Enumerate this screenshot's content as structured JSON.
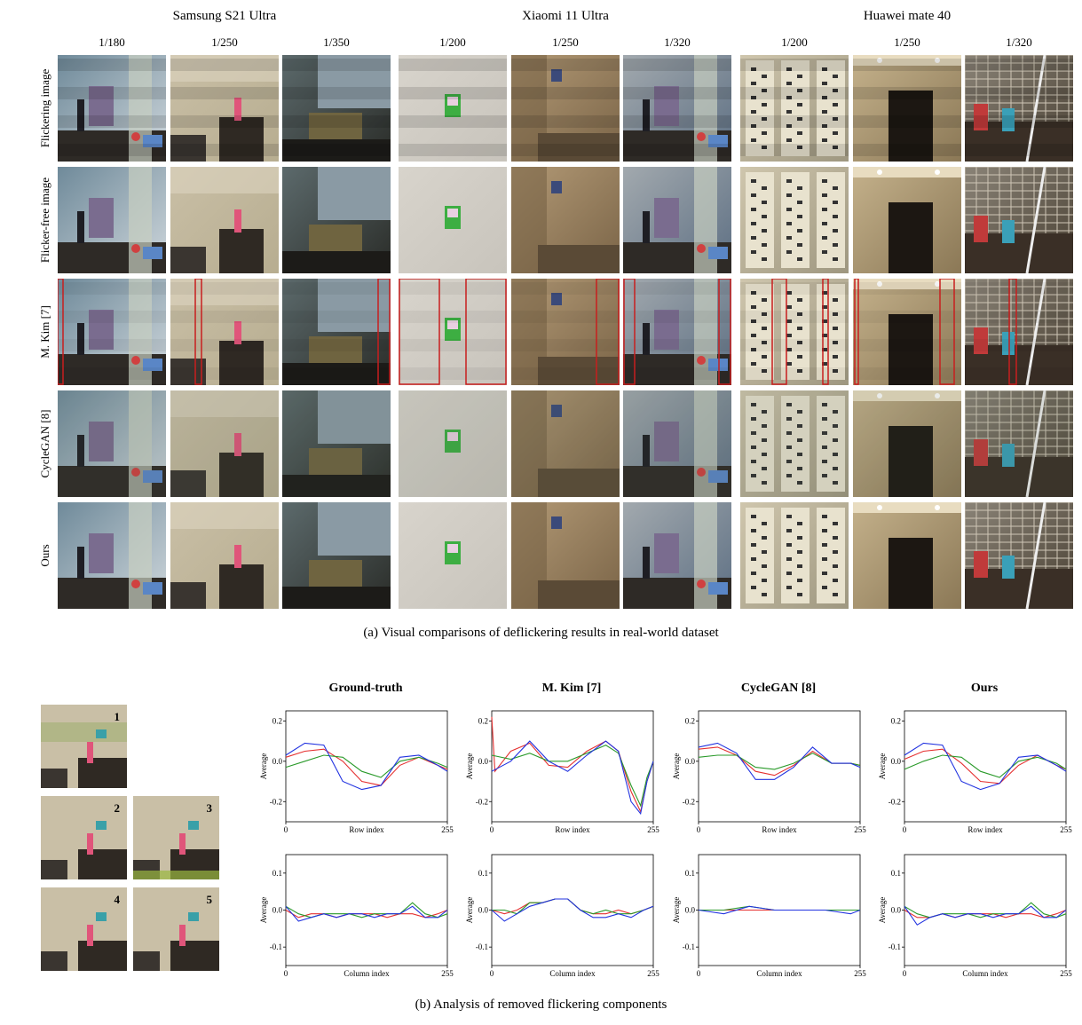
{
  "phones": [
    {
      "name": "Samsung S21 Ultra",
      "shutters": [
        "1/180",
        "1/250",
        "1/350"
      ]
    },
    {
      "name": "Xiaomi 11 Ultra",
      "shutters": [
        "1/200",
        "1/250",
        "1/320"
      ]
    },
    {
      "name": "Huawei mate 40",
      "shutters": [
        "1/200",
        "1/250",
        "1/320"
      ]
    }
  ],
  "row_labels": [
    "Flickering image",
    "Flicker-free image",
    "M. Kim [7]",
    "CycleGAN [8]",
    "Ours"
  ],
  "caption_a": "(a)  Visual comparisons of deflickering results in real-world dataset",
  "caption_b": "(b)  Analysis of removed flickering components",
  "thumb_numbers": [
    "1",
    "2",
    "3",
    "4",
    "5"
  ],
  "colors": {
    "red": "#e53030",
    "green": "#2a9a2a",
    "blue": "#2233e0",
    "box": "#c81e1e"
  },
  "chart_data": [
    {
      "type": "line",
      "title": "Ground-truth",
      "xlabel": "Row index",
      "ylabel": "Average",
      "xlim": [
        0,
        255
      ],
      "ylim": [
        -0.3,
        0.25
      ],
      "xticks": [
        "0",
        "255"
      ],
      "yticks": [
        "0.2",
        "0.0",
        "-0.2"
      ],
      "series": [
        {
          "color": "red",
          "x": [
            0,
            30,
            60,
            90,
            120,
            150,
            180,
            210,
            240,
            255
          ],
          "values": [
            0.02,
            0.05,
            0.06,
            0.0,
            -0.1,
            -0.12,
            -0.02,
            0.02,
            -0.02,
            -0.04
          ]
        },
        {
          "color": "green",
          "x": [
            0,
            30,
            60,
            90,
            120,
            150,
            180,
            210,
            240,
            255
          ],
          "values": [
            -0.03,
            0.0,
            0.03,
            0.02,
            -0.05,
            -0.08,
            0.0,
            0.02,
            -0.01,
            -0.03
          ]
        },
        {
          "color": "blue",
          "x": [
            0,
            30,
            60,
            90,
            120,
            150,
            180,
            210,
            240,
            255
          ],
          "values": [
            0.03,
            0.09,
            0.08,
            -0.1,
            -0.14,
            -0.12,
            0.02,
            0.03,
            -0.02,
            -0.05
          ]
        }
      ]
    },
    {
      "type": "line",
      "title": "M. Kim [7]",
      "xlabel": "Row index",
      "ylabel": "Average",
      "xlim": [
        0,
        255
      ],
      "ylim": [
        -0.3,
        0.25
      ],
      "xticks": [
        "0",
        "255"
      ],
      "yticks": [
        "0.2",
        "0.0",
        "-0.2"
      ],
      "series": [
        {
          "color": "red",
          "x": [
            0,
            5,
            30,
            60,
            90,
            120,
            150,
            180,
            200,
            220,
            235,
            245,
            255
          ],
          "values": [
            0.22,
            -0.05,
            0.05,
            0.09,
            -0.02,
            -0.03,
            0.05,
            0.1,
            0.05,
            -0.15,
            -0.25,
            -0.1,
            0.0
          ]
        },
        {
          "color": "green",
          "x": [
            0,
            30,
            60,
            90,
            120,
            150,
            180,
            200,
            220,
            235,
            245,
            255
          ],
          "values": [
            0.03,
            0.01,
            0.04,
            0.0,
            0.0,
            0.04,
            0.08,
            0.04,
            -0.12,
            -0.22,
            -0.08,
            0.0
          ]
        },
        {
          "color": "blue",
          "x": [
            0,
            30,
            60,
            90,
            120,
            150,
            180,
            200,
            220,
            235,
            245,
            255
          ],
          "values": [
            -0.05,
            0.0,
            0.1,
            0.0,
            -0.05,
            0.03,
            0.1,
            0.05,
            -0.2,
            -0.26,
            -0.1,
            0.0
          ]
        }
      ]
    },
    {
      "type": "line",
      "title": "CycleGAN [8]",
      "xlabel": "Row index",
      "ylabel": "Average",
      "xlim": [
        0,
        255
      ],
      "ylim": [
        -0.3,
        0.25
      ],
      "xticks": [
        "0",
        "255"
      ],
      "yticks": [
        "0.2",
        "0.0",
        "-0.2"
      ],
      "series": [
        {
          "color": "red",
          "x": [
            0,
            30,
            60,
            90,
            120,
            150,
            180,
            210,
            240,
            255
          ],
          "values": [
            0.06,
            0.07,
            0.03,
            -0.05,
            -0.07,
            -0.02,
            0.05,
            -0.01,
            -0.01,
            -0.02
          ]
        },
        {
          "color": "green",
          "x": [
            0,
            30,
            60,
            90,
            120,
            150,
            180,
            210,
            240,
            255
          ],
          "values": [
            0.02,
            0.03,
            0.03,
            -0.03,
            -0.04,
            -0.01,
            0.04,
            -0.01,
            -0.01,
            -0.02
          ]
        },
        {
          "color": "blue",
          "x": [
            0,
            30,
            60,
            90,
            120,
            150,
            180,
            210,
            240,
            255
          ],
          "values": [
            0.07,
            0.09,
            0.04,
            -0.09,
            -0.09,
            -0.03,
            0.07,
            -0.01,
            -0.01,
            -0.03
          ]
        }
      ]
    },
    {
      "type": "line",
      "title": "Ours",
      "xlabel": "Row index",
      "ylabel": "Average",
      "xlim": [
        0,
        255
      ],
      "ylim": [
        -0.3,
        0.25
      ],
      "xticks": [
        "0",
        "255"
      ],
      "yticks": [
        "0.2",
        "0.0",
        "-0.2"
      ],
      "series": [
        {
          "color": "red",
          "x": [
            0,
            30,
            60,
            90,
            120,
            150,
            180,
            210,
            240,
            255
          ],
          "values": [
            0.01,
            0.05,
            0.06,
            -0.01,
            -0.1,
            -0.11,
            -0.02,
            0.03,
            -0.02,
            -0.04
          ]
        },
        {
          "color": "green",
          "x": [
            0,
            30,
            60,
            90,
            120,
            150,
            180,
            210,
            240,
            255
          ],
          "values": [
            -0.04,
            0.0,
            0.03,
            0.02,
            -0.05,
            -0.08,
            0.0,
            0.02,
            -0.01,
            -0.04
          ]
        },
        {
          "color": "blue",
          "x": [
            0,
            30,
            60,
            90,
            120,
            150,
            180,
            210,
            240,
            255
          ],
          "values": [
            0.03,
            0.09,
            0.08,
            -0.1,
            -0.14,
            -0.11,
            0.02,
            0.03,
            -0.02,
            -0.05
          ]
        }
      ]
    },
    {
      "type": "line",
      "title": "",
      "xlabel": "Column index",
      "ylabel": "Average",
      "xlim": [
        0,
        255
      ],
      "ylim": [
        -0.15,
        0.15
      ],
      "xticks": [
        "0",
        "255"
      ],
      "yticks": [
        "0.1",
        "0.0",
        "-0.1"
      ],
      "series": [
        {
          "color": "red",
          "x": [
            0,
            20,
            40,
            60,
            80,
            100,
            120,
            140,
            160,
            180,
            200,
            220,
            240,
            255
          ],
          "values": [
            0.0,
            -0.02,
            -0.01,
            -0.01,
            -0.02,
            -0.01,
            -0.01,
            -0.01,
            -0.02,
            -0.01,
            -0.01,
            -0.02,
            -0.01,
            0.0
          ]
        },
        {
          "color": "green",
          "x": [
            0,
            20,
            40,
            60,
            80,
            100,
            120,
            140,
            160,
            180,
            200,
            220,
            240,
            255
          ],
          "values": [
            0.01,
            -0.01,
            -0.02,
            -0.01,
            -0.01,
            -0.01,
            -0.02,
            -0.01,
            -0.01,
            -0.01,
            0.02,
            -0.01,
            -0.02,
            -0.01
          ]
        },
        {
          "color": "blue",
          "x": [
            0,
            20,
            40,
            60,
            80,
            100,
            120,
            140,
            160,
            180,
            200,
            220,
            240,
            255
          ],
          "values": [
            0.01,
            -0.03,
            -0.02,
            -0.01,
            -0.02,
            -0.01,
            -0.01,
            -0.02,
            -0.01,
            -0.01,
            0.01,
            -0.02,
            -0.02,
            0.0
          ]
        }
      ]
    },
    {
      "type": "line",
      "title": "",
      "xlabel": "Column index",
      "ylabel": "Average",
      "xlim": [
        0,
        255
      ],
      "ylim": [
        -0.15,
        0.15
      ],
      "xticks": [
        "0",
        "255"
      ],
      "yticks": [
        "0.1",
        "0.0",
        "-0.1"
      ],
      "series": [
        {
          "color": "red",
          "x": [
            0,
            20,
            40,
            60,
            80,
            100,
            120,
            140,
            160,
            180,
            200,
            220,
            240,
            255
          ],
          "values": [
            0.0,
            -0.01,
            0.0,
            0.02,
            0.02,
            0.03,
            0.03,
            0.0,
            -0.01,
            -0.01,
            0.0,
            -0.01,
            0.0,
            0.01
          ]
        },
        {
          "color": "green",
          "x": [
            0,
            20,
            40,
            60,
            80,
            100,
            120,
            140,
            160,
            180,
            200,
            220,
            240,
            255
          ],
          "values": [
            0.0,
            0.0,
            -0.01,
            0.02,
            0.02,
            0.03,
            0.03,
            0.0,
            -0.01,
            0.0,
            -0.01,
            -0.01,
            0.0,
            0.01
          ]
        },
        {
          "color": "blue",
          "x": [
            0,
            20,
            40,
            60,
            80,
            100,
            120,
            140,
            160,
            180,
            200,
            220,
            240,
            255
          ],
          "values": [
            0.0,
            -0.03,
            -0.01,
            0.01,
            0.02,
            0.03,
            0.03,
            0.0,
            -0.02,
            -0.02,
            -0.01,
            -0.02,
            0.0,
            0.01
          ]
        }
      ]
    },
    {
      "type": "line",
      "title": "",
      "xlabel": "Column index",
      "ylabel": "Average",
      "xlim": [
        0,
        255
      ],
      "ylim": [
        -0.15,
        0.15
      ],
      "xticks": [
        "0",
        "255"
      ],
      "yticks": [
        "0.1",
        "0.0",
        "-0.1"
      ],
      "series": [
        {
          "color": "red",
          "x": [
            0,
            40,
            80,
            120,
            160,
            200,
            240,
            255
          ],
          "values": [
            0.0,
            0.0,
            0.0,
            0.0,
            0.0,
            0.0,
            0.0,
            0.0
          ]
        },
        {
          "color": "green",
          "x": [
            0,
            40,
            80,
            120,
            160,
            200,
            240,
            255
          ],
          "values": [
            0.0,
            0.0,
            0.01,
            0.0,
            0.0,
            0.0,
            0.0,
            0.0
          ]
        },
        {
          "color": "blue",
          "x": [
            0,
            40,
            80,
            120,
            160,
            200,
            240,
            255
          ],
          "values": [
            0.0,
            -0.01,
            0.01,
            0.0,
            0.0,
            0.0,
            -0.01,
            0.0
          ]
        }
      ]
    },
    {
      "type": "line",
      "title": "",
      "xlabel": "Column index",
      "ylabel": "Average",
      "xlim": [
        0,
        255
      ],
      "ylim": [
        -0.15,
        0.15
      ],
      "xticks": [
        "0",
        "255"
      ],
      "yticks": [
        "0.1",
        "0.0",
        "-0.1"
      ],
      "series": [
        {
          "color": "red",
          "x": [
            0,
            20,
            40,
            60,
            80,
            100,
            120,
            140,
            160,
            180,
            200,
            220,
            240,
            255
          ],
          "values": [
            0.0,
            -0.02,
            -0.02,
            -0.01,
            -0.02,
            -0.01,
            -0.01,
            -0.01,
            -0.02,
            -0.01,
            -0.01,
            -0.02,
            -0.01,
            0.0
          ]
        },
        {
          "color": "green",
          "x": [
            0,
            20,
            40,
            60,
            80,
            100,
            120,
            140,
            160,
            180,
            200,
            220,
            240,
            255
          ],
          "values": [
            0.01,
            -0.01,
            -0.02,
            -0.01,
            -0.01,
            -0.01,
            -0.02,
            -0.01,
            -0.01,
            -0.01,
            0.02,
            -0.01,
            -0.02,
            -0.01
          ]
        },
        {
          "color": "blue",
          "x": [
            0,
            20,
            40,
            60,
            80,
            100,
            120,
            140,
            160,
            180,
            200,
            220,
            240,
            255
          ],
          "values": [
            0.01,
            -0.04,
            -0.02,
            -0.01,
            -0.02,
            -0.01,
            -0.01,
            -0.02,
            -0.01,
            -0.01,
            0.01,
            -0.02,
            -0.02,
            0.0
          ]
        }
      ]
    }
  ]
}
